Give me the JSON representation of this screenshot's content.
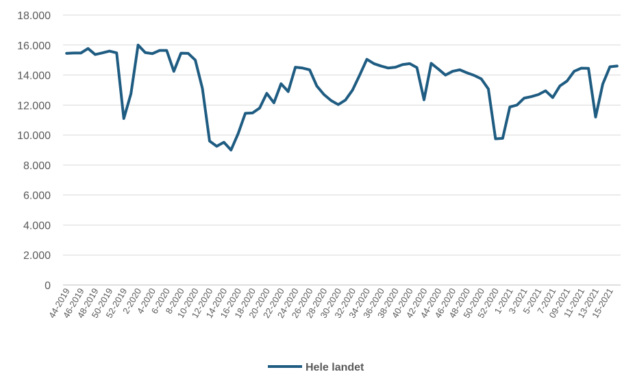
{
  "chart_data": {
    "type": "line",
    "title": "",
    "xlabel": "",
    "ylabel": "",
    "ylim": [
      0,
      18000
    ],
    "yticks": [
      "0",
      "2.000",
      "4.000",
      "6.000",
      "8.000",
      "10.000",
      "12.000",
      "14.000",
      "16.000",
      "18.000"
    ],
    "ytick_values": [
      0,
      2000,
      4000,
      6000,
      8000,
      10000,
      12000,
      14000,
      16000,
      18000
    ],
    "grid": true,
    "legend_position": "bottom",
    "color": "#1f5c82",
    "x": [
      "44-2019",
      "45-2019",
      "46-2019",
      "47-2019",
      "48-2019",
      "49-2019",
      "50-2019",
      "51-2019",
      "52-2019",
      "1-2020",
      "2-2020",
      "3-2020",
      "4-2020",
      "5-2020",
      "6-2020",
      "7-2020",
      "8-2020",
      "9-2020",
      "10-2020",
      "11-2020",
      "12-2020",
      "13-2020",
      "14-2020",
      "15-2020",
      "16-2020",
      "17-2020",
      "18-2020",
      "19-2020",
      "20-2020",
      "21-2020",
      "22-2020",
      "23-2020",
      "24-2020",
      "25-2020",
      "26-2020",
      "27-2020",
      "28-2020",
      "29-2020",
      "30-2020",
      "31-2020",
      "32-2020",
      "33-2020",
      "34-2020",
      "35-2020",
      "36-2020",
      "37-2020",
      "38-2020",
      "39-2020",
      "40-2020",
      "41-2020",
      "42-2020",
      "43-2020",
      "44-2020",
      "45-2020",
      "46-2020",
      "47-2020",
      "48-2020",
      "49-2020",
      "50-2020",
      "51-2020",
      "52-2020",
      "53-2020",
      "1-2021",
      "2-2021",
      "3-2021",
      "4-2021",
      "5-2021",
      "6-2021",
      "7-2021",
      "8-2021",
      "09-2021",
      "10-2021",
      "11-2021",
      "12-2021",
      "13-2021",
      "14-2021",
      "15-2021",
      "16-2021"
    ],
    "xtick_labels": [
      "44-2019",
      "46-2019",
      "48-2019",
      "50-2019",
      "52-2019",
      "2-2020",
      "4-2020",
      "6-2020",
      "8-2020",
      "10-2020",
      "12-2020",
      "14-2020",
      "16-2020",
      "18-2020",
      "20-2020",
      "22-2020",
      "24-2020",
      "26-2020",
      "28-2020",
      "30-2020",
      "32-2020",
      "34-2020",
      "36-2020",
      "38-2020",
      "40-2020",
      "42-2020",
      "44-2020",
      "46-2020",
      "48-2020",
      "50-2020",
      "52-2020",
      "1-2021",
      "3-2021",
      "5-2021",
      "7-2021",
      "09-2021",
      "11-2021",
      "13-2021",
      "15-2021"
    ],
    "series": [
      {
        "name": "Hele landet",
        "values": [
          15450,
          15470,
          15470,
          15770,
          15370,
          15480,
          15600,
          15480,
          11100,
          12750,
          16000,
          15500,
          15430,
          15640,
          15640,
          14250,
          15460,
          15450,
          15000,
          13100,
          9600,
          9250,
          9520,
          9000,
          10100,
          11450,
          11470,
          11800,
          12780,
          12150,
          13420,
          12900,
          14520,
          14470,
          14350,
          13270,
          12700,
          12300,
          12030,
          12330,
          13000,
          14000,
          15050,
          14760,
          14600,
          14470,
          14520,
          14700,
          14760,
          14500,
          12350,
          14780,
          14400,
          14000,
          14250,
          14350,
          14150,
          13980,
          13750,
          13070,
          9750,
          9780,
          11870,
          12000,
          12460,
          12560,
          12700,
          12950,
          12500,
          13270,
          13600,
          14250,
          14460,
          14450,
          11200,
          13400,
          14550,
          14600
        ]
      }
    ]
  }
}
